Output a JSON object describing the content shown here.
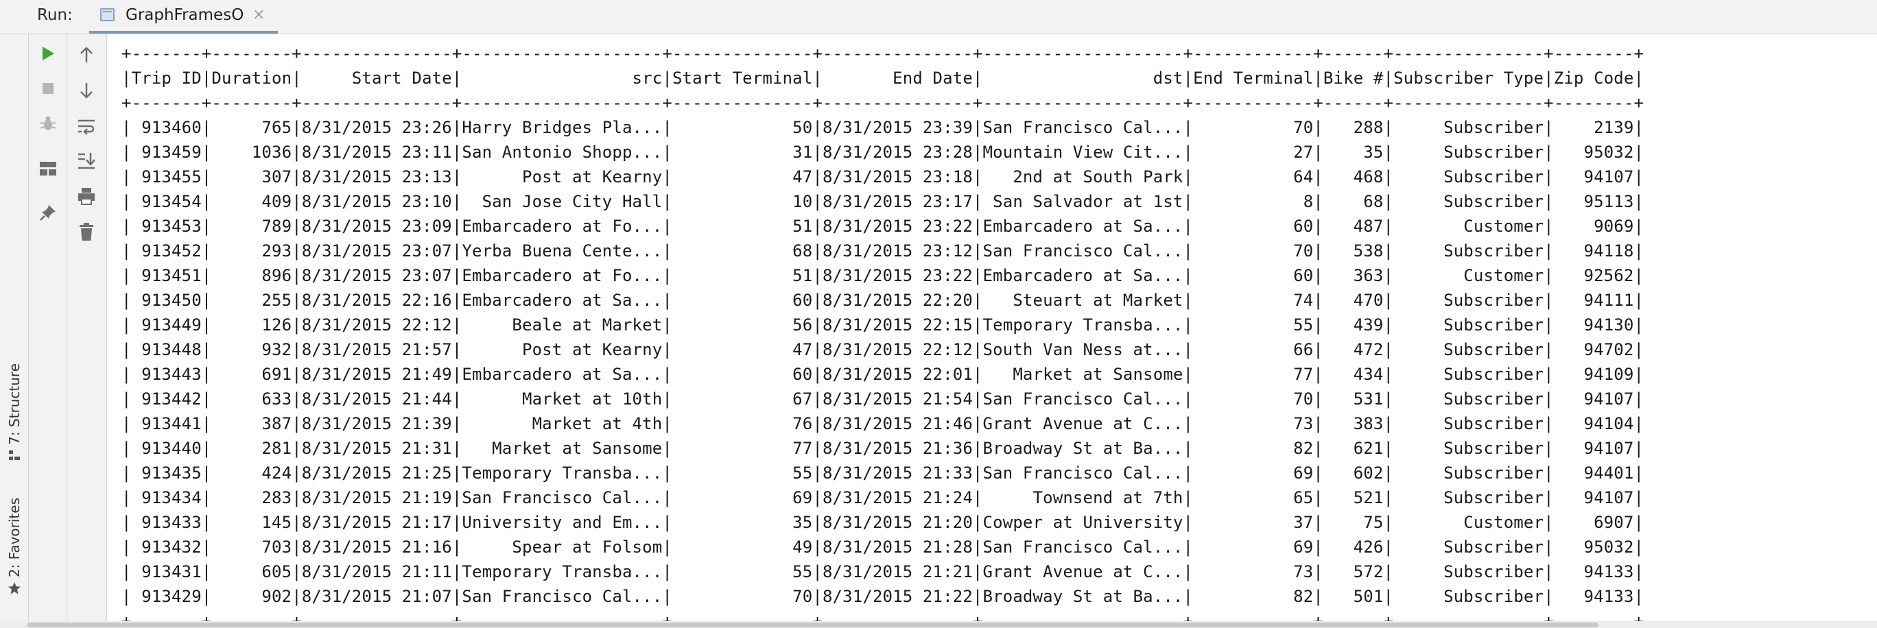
{
  "run_panel": {
    "label": "Run:",
    "tab_label": "GraphFramesO",
    "tab_icon": "console-icon",
    "close_glyph": "×"
  },
  "side_tabs": {
    "structure": {
      "label": "7: Structure",
      "icon": "structure-icon"
    },
    "favorites": {
      "label": "2: Favorites",
      "icon": "star-icon"
    }
  },
  "toolbar_left": [
    {
      "name": "rerun-button",
      "icon": "play-icon"
    },
    {
      "name": "stop-button",
      "icon": "stop-icon"
    },
    {
      "name": "debug-button",
      "icon": "bug-icon"
    },
    {
      "name": "layout-button",
      "icon": "layout-icon"
    },
    {
      "name": "pin-button",
      "icon": "pin-icon"
    }
  ],
  "toolbar_right": [
    {
      "name": "up-button",
      "icon": "arrow-up-icon"
    },
    {
      "name": "down-button",
      "icon": "arrow-down-icon"
    },
    {
      "name": "soft-wrap-button",
      "icon": "wrap-icon"
    },
    {
      "name": "scroll-to-end-button",
      "icon": "scroll-end-icon"
    },
    {
      "name": "print-button",
      "icon": "printer-icon"
    },
    {
      "name": "clear-button",
      "icon": "trash-icon"
    }
  ],
  "colors": {
    "play": "#3fa33a",
    "disabled": "#b5b5b5",
    "icon": "#6e6e6e"
  },
  "console": {
    "lines": [
      "+-------+--------+---------------+--------------------+--------------+---------------+--------------------+------------+------+---------------+--------+",
      "|Trip ID|Duration|     Start Date|                 src|Start Terminal|       End Date|                 dst|End Terminal|Bike #|Subscriber Type|Zip Code|",
      "+-------+--------+---------------+--------------------+--------------+---------------+--------------------+------------+------+---------------+--------+",
      "| 913460|     765|8/31/2015 23:26|Harry Bridges Pla...|            50|8/31/2015 23:39|San Francisco Cal...|          70|   288|     Subscriber|    2139|",
      "| 913459|    1036|8/31/2015 23:11|San Antonio Shopp...|            31|8/31/2015 23:28|Mountain View Cit...|          27|    35|     Subscriber|   95032|",
      "| 913455|     307|8/31/2015 23:13|      Post at Kearny|            47|8/31/2015 23:18|   2nd at South Park|          64|   468|     Subscriber|   94107|",
      "| 913454|     409|8/31/2015 23:10|  San Jose City Hall|            10|8/31/2015 23:17| San Salvador at 1st|           8|    68|     Subscriber|   95113|",
      "| 913453|     789|8/31/2015 23:09|Embarcadero at Fo...|            51|8/31/2015 23:22|Embarcadero at Sa...|          60|   487|       Customer|    9069|",
      "| 913452|     293|8/31/2015 23:07|Yerba Buena Cente...|            68|8/31/2015 23:12|San Francisco Cal...|          70|   538|     Subscriber|   94118|",
      "| 913451|     896|8/31/2015 23:07|Embarcadero at Fo...|            51|8/31/2015 23:22|Embarcadero at Sa...|          60|   363|       Customer|   92562|",
      "| 913450|     255|8/31/2015 22:16|Embarcadero at Sa...|            60|8/31/2015 22:20|   Steuart at Market|          74|   470|     Subscriber|   94111|",
      "| 913449|     126|8/31/2015 22:12|     Beale at Market|            56|8/31/2015 22:15|Temporary Transba...|          55|   439|     Subscriber|   94130|",
      "| 913448|     932|8/31/2015 21:57|      Post at Kearny|            47|8/31/2015 22:12|South Van Ness at...|          66|   472|     Subscriber|   94702|",
      "| 913443|     691|8/31/2015 21:49|Embarcadero at Sa...|            60|8/31/2015 22:01|   Market at Sansome|          77|   434|     Subscriber|   94109|",
      "| 913442|     633|8/31/2015 21:44|      Market at 10th|            67|8/31/2015 21:54|San Francisco Cal...|          70|   531|     Subscriber|   94107|",
      "| 913441|     387|8/31/2015 21:39|       Market at 4th|            76|8/31/2015 21:46|Grant Avenue at C...|          73|   383|     Subscriber|   94104|",
      "| 913440|     281|8/31/2015 21:31|   Market at Sansome|            77|8/31/2015 21:36|Broadway St at Ba...|          82|   621|     Subscriber|   94107|",
      "| 913435|     424|8/31/2015 21:25|Temporary Transba...|            55|8/31/2015 21:33|San Francisco Cal...|          69|   602|     Subscriber|   94401|",
      "| 913434|     283|8/31/2015 21:19|San Francisco Cal...|            69|8/31/2015 21:24|     Townsend at 7th|          65|   521|     Subscriber|   94107|",
      "| 913433|     145|8/31/2015 21:17|University and Em...|            35|8/31/2015 21:20|Cowper at University|          37|    75|       Customer|    6907|",
      "| 913432|     703|8/31/2015 21:16|     Spear at Folsom|            49|8/31/2015 21:28|San Francisco Cal...|          69|   426|     Subscriber|   95032|",
      "| 913431|     605|8/31/2015 21:11|Temporary Transba...|            55|8/31/2015 21:21|Grant Avenue at C...|          73|   572|     Subscriber|   94133|",
      "| 913429|     902|8/31/2015 21:07|San Francisco Cal...|            70|8/31/2015 21:22|Broadway St at Ba...|          82|   501|     Subscriber|   94133|",
      "+-------+--------+---------------+--------------------+--------------+---------------+--------------------+------------+------+---------------+--------+"
    ]
  }
}
